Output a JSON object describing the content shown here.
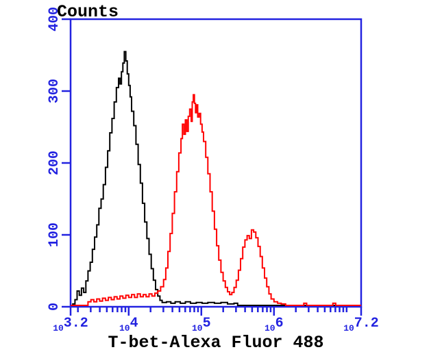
{
  "figure": {
    "background": "#ffffff"
  },
  "chart_data": {
    "type": "line",
    "subtype": "flow-cytometry-histogram-overlay",
    "title": "Counts",
    "xlabel": "T-bet-Alexa Fluor 488",
    "ylabel": "Counts",
    "x_scale": "log10",
    "xlim_log10": [
      3.2,
      7.2
    ],
    "ylim": [
      0,
      400
    ],
    "grid": false,
    "legend": "none",
    "axis_color": "#2222e0",
    "tick_label_color": "#2222e0",
    "y_ticks": [
      0,
      100,
      200,
      300,
      400
    ],
    "x_ticks": [
      {
        "log10": 3.2,
        "base": "10",
        "exponent": "3.2"
      },
      {
        "log10": 4.0,
        "base": "10",
        "exponent": "4"
      },
      {
        "log10": 5.0,
        "base": "10",
        "exponent": "5"
      },
      {
        "log10": 6.0,
        "base": "10",
        "exponent": "6"
      },
      {
        "log10": 7.2,
        "base": "10",
        "exponent": "7.2"
      }
    ],
    "series": [
      {
        "name": "black curve",
        "color": "#000000",
        "peaks": [
          {
            "log10_x": 3.94,
            "counts": 353
          }
        ],
        "points": [
          [
            3.2,
            0
          ],
          [
            3.23,
            2
          ],
          [
            3.26,
            8
          ],
          [
            3.29,
            20
          ],
          [
            3.32,
            14
          ],
          [
            3.35,
            24
          ],
          [
            3.38,
            18
          ],
          [
            3.41,
            34
          ],
          [
            3.44,
            48
          ],
          [
            3.47,
            60
          ],
          [
            3.5,
            78
          ],
          [
            3.53,
            95
          ],
          [
            3.56,
            112
          ],
          [
            3.59,
            135
          ],
          [
            3.62,
            148
          ],
          [
            3.65,
            168
          ],
          [
            3.68,
            192
          ],
          [
            3.71,
            215
          ],
          [
            3.74,
            240
          ],
          [
            3.77,
            260
          ],
          [
            3.8,
            283
          ],
          [
            3.83,
            303
          ],
          [
            3.86,
            316
          ],
          [
            3.88,
            308
          ],
          [
            3.9,
            325
          ],
          [
            3.92,
            337
          ],
          [
            3.94,
            353
          ],
          [
            3.96,
            340
          ],
          [
            3.98,
            322
          ],
          [
            4.0,
            306
          ],
          [
            4.02,
            290
          ],
          [
            4.04,
            270
          ],
          [
            4.07,
            250
          ],
          [
            4.1,
            224
          ],
          [
            4.13,
            196
          ],
          [
            4.16,
            170
          ],
          [
            4.19,
            142
          ],
          [
            4.22,
            116
          ],
          [
            4.25,
            93
          ],
          [
            4.28,
            71
          ],
          [
            4.31,
            51
          ],
          [
            4.34,
            35
          ],
          [
            4.37,
            22
          ],
          [
            4.4,
            13
          ],
          [
            4.43,
            7
          ],
          [
            4.46,
            4
          ],
          [
            4.52,
            5
          ],
          [
            4.58,
            3
          ],
          [
            4.64,
            5
          ],
          [
            4.71,
            3
          ],
          [
            4.78,
            5
          ],
          [
            4.85,
            3
          ],
          [
            4.93,
            4
          ],
          [
            5.01,
            3
          ],
          [
            5.09,
            4
          ],
          [
            5.18,
            3
          ],
          [
            5.27,
            4
          ],
          [
            5.36,
            2
          ],
          [
            5.45,
            3
          ],
          [
            5.5,
            0
          ],
          [
            7.2,
            0
          ]
        ]
      },
      {
        "name": "red curve",
        "color": "#ff0000",
        "peaks": [
          {
            "log10_x": 4.89,
            "counts": 293
          },
          {
            "log10_x": 5.7,
            "counts": 105
          }
        ],
        "points": [
          [
            3.2,
            0
          ],
          [
            3.4,
            0
          ],
          [
            3.44,
            5
          ],
          [
            3.48,
            8
          ],
          [
            3.52,
            5
          ],
          [
            3.56,
            9
          ],
          [
            3.6,
            6
          ],
          [
            3.64,
            10
          ],
          [
            3.68,
            7
          ],
          [
            3.72,
            11
          ],
          [
            3.76,
            8
          ],
          [
            3.8,
            12
          ],
          [
            3.84,
            9
          ],
          [
            3.88,
            13
          ],
          [
            3.92,
            10
          ],
          [
            3.96,
            14
          ],
          [
            4.0,
            11
          ],
          [
            4.04,
            15
          ],
          [
            4.08,
            11
          ],
          [
            4.12,
            16
          ],
          [
            4.16,
            12
          ],
          [
            4.2,
            15
          ],
          [
            4.24,
            12
          ],
          [
            4.28,
            16
          ],
          [
            4.32,
            13
          ],
          [
            4.36,
            17
          ],
          [
            4.4,
            20
          ],
          [
            4.44,
            26
          ],
          [
            4.48,
            36
          ],
          [
            4.51,
            52
          ],
          [
            4.54,
            75
          ],
          [
            4.57,
            100
          ],
          [
            4.6,
            128
          ],
          [
            4.63,
            158
          ],
          [
            4.66,
            186
          ],
          [
            4.69,
            212
          ],
          [
            4.72,
            232
          ],
          [
            4.74,
            252
          ],
          [
            4.76,
            238
          ],
          [
            4.78,
            258
          ],
          [
            4.8,
            242
          ],
          [
            4.82,
            263
          ],
          [
            4.84,
            273
          ],
          [
            4.86,
            256
          ],
          [
            4.875,
            283
          ],
          [
            4.89,
            293
          ],
          [
            4.905,
            281
          ],
          [
            4.92,
            268
          ],
          [
            4.935,
            279
          ],
          [
            4.95,
            262
          ],
          [
            4.97,
            267
          ],
          [
            4.99,
            252
          ],
          [
            5.01,
            241
          ],
          [
            5.03,
            228
          ],
          [
            5.06,
            206
          ],
          [
            5.09,
            183
          ],
          [
            5.12,
            158
          ],
          [
            5.15,
            131
          ],
          [
            5.18,
            106
          ],
          [
            5.21,
            83
          ],
          [
            5.24,
            63
          ],
          [
            5.27,
            46
          ],
          [
            5.3,
            34
          ],
          [
            5.33,
            25
          ],
          [
            5.36,
            19
          ],
          [
            5.39,
            15
          ],
          [
            5.42,
            18
          ],
          [
            5.45,
            25
          ],
          [
            5.48,
            35
          ],
          [
            5.51,
            49
          ],
          [
            5.54,
            65
          ],
          [
            5.57,
            81
          ],
          [
            5.6,
            91
          ],
          [
            5.63,
            97
          ],
          [
            5.66,
            93
          ],
          [
            5.69,
            105
          ],
          [
            5.72,
            102
          ],
          [
            5.75,
            94
          ],
          [
            5.78,
            82
          ],
          [
            5.81,
            68
          ],
          [
            5.84,
            52
          ],
          [
            5.87,
            38
          ],
          [
            5.9,
            26
          ],
          [
            5.93,
            16
          ],
          [
            5.96,
            9
          ],
          [
            6.0,
            5
          ],
          [
            6.05,
            3
          ],
          [
            6.1,
            2
          ],
          [
            6.16,
            0
          ],
          [
            6.38,
            0
          ],
          [
            6.41,
            3
          ],
          [
            6.45,
            0
          ],
          [
            6.78,
            0
          ],
          [
            6.81,
            3
          ],
          [
            6.85,
            0
          ],
          [
            7.2,
            0
          ]
        ]
      }
    ]
  }
}
